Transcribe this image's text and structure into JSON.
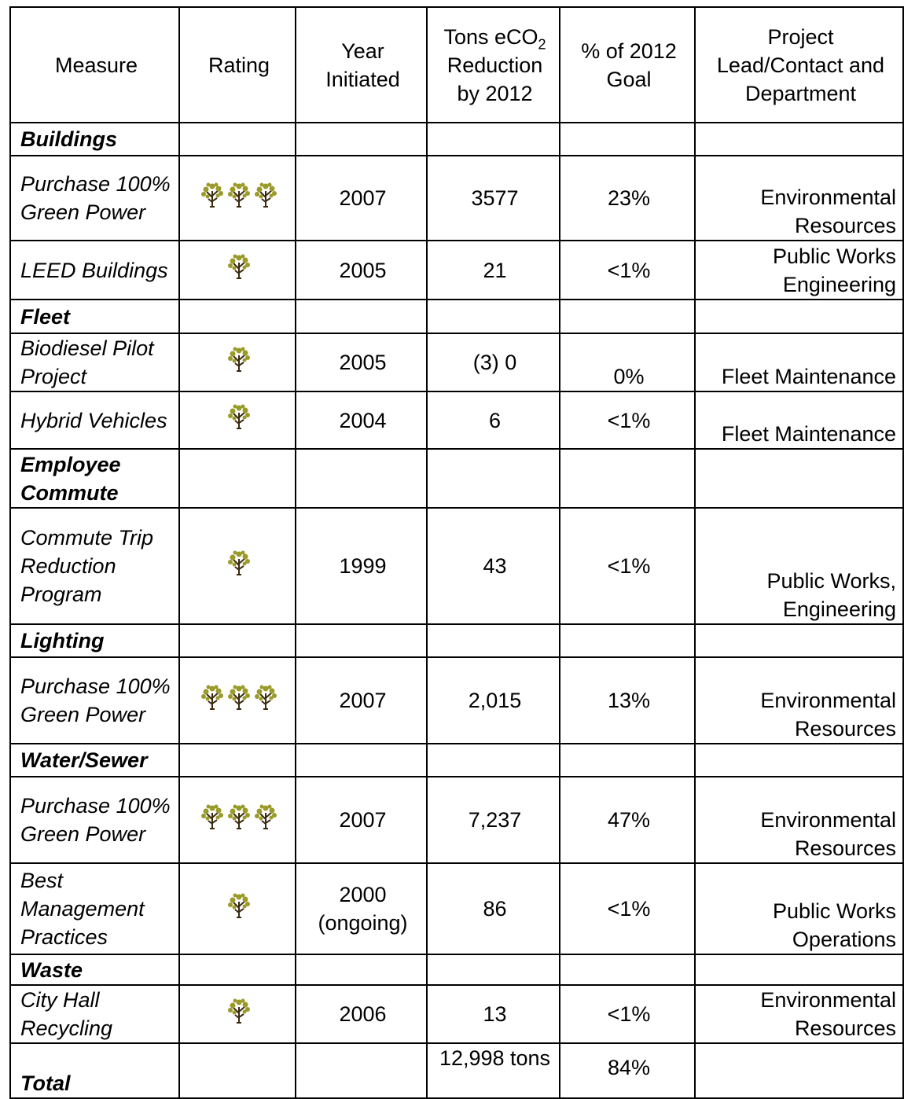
{
  "table": {
    "headers": [
      "Measure",
      "Rating",
      "Year Initiated",
      {
        "text": "Tons eCO",
        "sub": "2",
        "rest": "Reduction by 2012"
      },
      "% of 2012 Goal",
      "Project Lead/Contact and Department"
    ],
    "rows": [
      {
        "section": "Buildings"
      },
      {
        "measure": "Purchase 100% Green Power",
        "rating": 3,
        "year": "2007",
        "tons": "3577",
        "percent": "23%",
        "dept": "Environmental Resources"
      },
      {
        "measure": "LEED Buildings",
        "rating": 1,
        "year": "2005",
        "tons": "21",
        "percent": "<1%",
        "dept": "Public Works Engineering"
      },
      {
        "section": "Fleet"
      },
      {
        "measure": "Biodiesel Pilot Project",
        "rating": 1,
        "year": "2005",
        "tons": "(3) 0",
        "percent": "0%",
        "dept": "Fleet Maintenance"
      },
      {
        "measure": "Hybrid Vehicles",
        "rating": 1,
        "year": "2004",
        "tons": "6",
        "percent": "<1%",
        "dept": "Fleet Maintenance"
      },
      {
        "section": "Employee Commute"
      },
      {
        "measure": "Commute Trip Reduction Program",
        "rating": 1,
        "year": "1999",
        "tons": "43",
        "percent": "<1%",
        "dept": "Public Works, Engineering"
      },
      {
        "section": "Lighting"
      },
      {
        "measure": "Purchase 100% Green Power",
        "rating": 3,
        "year": "2007",
        "tons": "2,015",
        "percent": "13%",
        "dept": "Environmental Resources"
      },
      {
        "section": "Water/Sewer"
      },
      {
        "measure": "Purchase 100% Green Power",
        "rating": 3,
        "year": "2007",
        "tons": "7,237",
        "percent": "47%",
        "dept": "Environmental Resources"
      },
      {
        "measure": "Best Management Practices",
        "rating": 1,
        "year": "2000 (ongoing)",
        "tons": "86",
        "percent": "<1%",
        "dept": "Public Works Operations"
      },
      {
        "section": "Waste"
      },
      {
        "measure": "City Hall Recycling",
        "rating": 1,
        "year": "2006",
        "tons": "13",
        "percent": "<1%",
        "dept": "Environmental Resources"
      },
      {
        "total": "Total",
        "tons": "12,998 tons",
        "percent": "84%"
      }
    ]
  }
}
